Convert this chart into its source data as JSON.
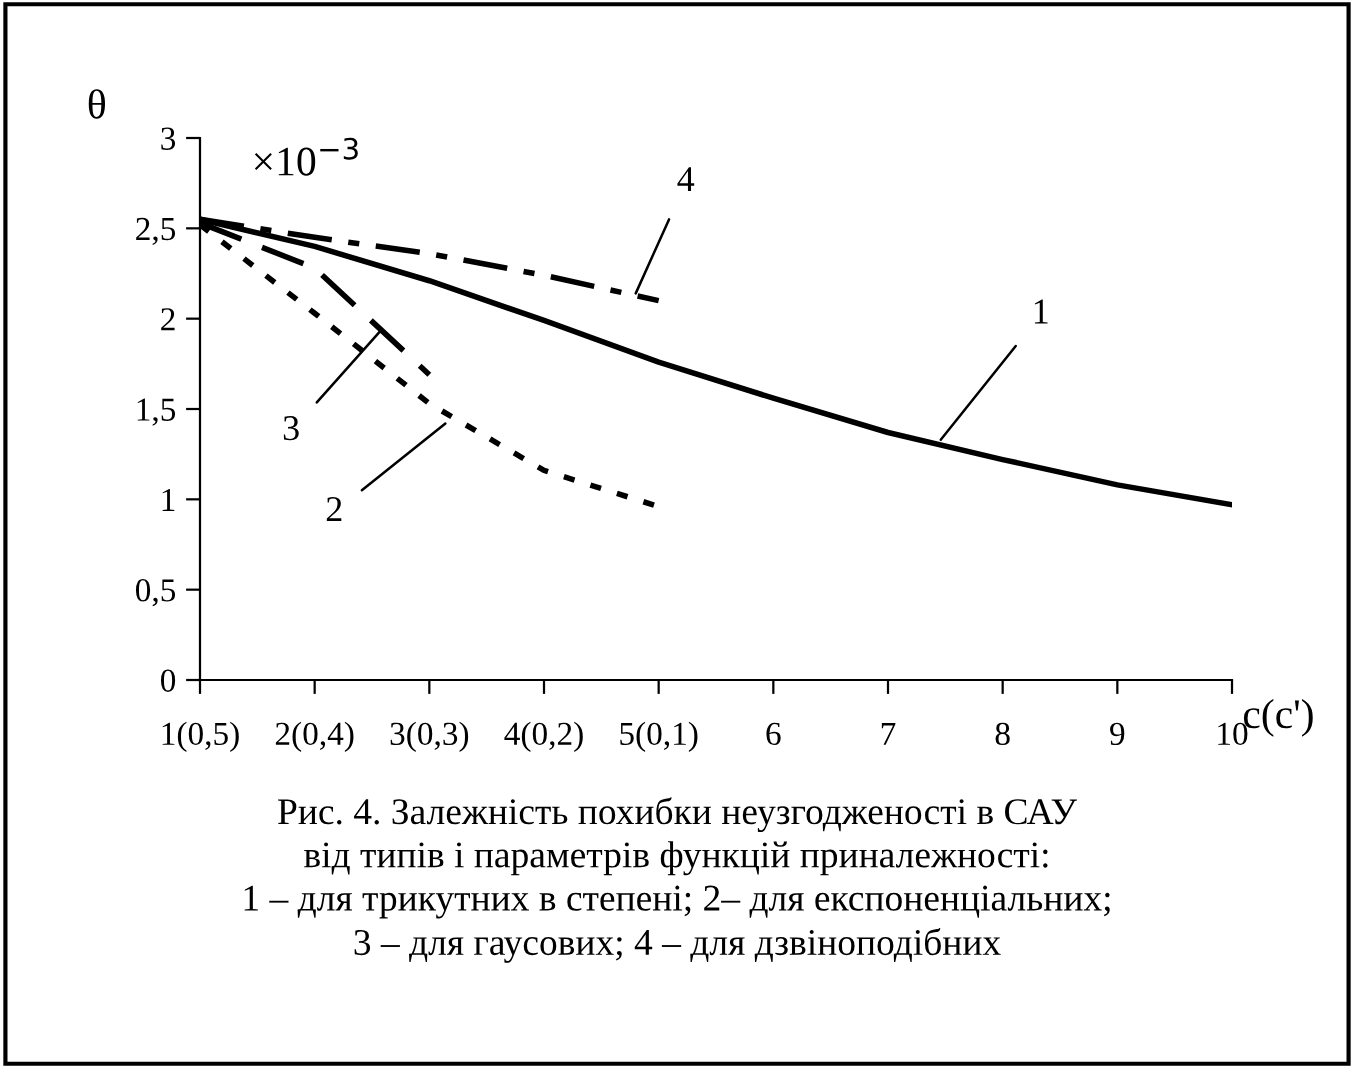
{
  "chart_data": {
    "type": "line",
    "ylabel": "θ",
    "xlabel": "c(c')",
    "x": [
      1,
      2,
      3,
      4,
      5,
      6,
      7,
      8,
      9,
      10
    ],
    "xlim": [
      1,
      10
    ],
    "xticks": [
      {
        "value": 1,
        "label": "1(0,5)"
      },
      {
        "value": 2,
        "label": "2(0,4)"
      },
      {
        "value": 3,
        "label": "3(0,3)"
      },
      {
        "value": 4,
        "label": "4(0,2)"
      },
      {
        "value": 5,
        "label": "5(0,1)"
      },
      6,
      7,
      8,
      9,
      10
    ],
    "ylim": [
      0,
      3
    ],
    "yticks": [
      0,
      {
        "value": 0.5,
        "label": "0,5"
      },
      1,
      {
        "value": 1.5,
        "label": "1,5"
      },
      2,
      {
        "value": 2.5,
        "label": "2,5"
      },
      3
    ],
    "grid": false,
    "legend": false,
    "series": [
      {
        "color": "#000000",
        "line_style": "solid",
        "values": [
          2.55,
          2.4,
          2.21,
          1.99,
          1.76,
          1.56,
          1.37,
          1.22,
          1.08,
          0.97
        ]
      },
      {
        "color": "#000000",
        "line_style": "dotted",
        "values": [
          2.52,
          2.03,
          1.53,
          1.16,
          0.96,
          null,
          null,
          null,
          null,
          null
        ]
      },
      {
        "color": "#000000",
        "line_style": "dashed",
        "values": [
          2.53,
          2.28,
          1.69,
          null,
          null,
          null,
          null,
          null,
          null,
          null
        ]
      },
      {
        "color": "#000000",
        "line_style": "dashdot",
        "values": [
          2.55,
          2.45,
          2.36,
          2.24,
          2.1,
          null,
          null,
          null,
          null,
          null
        ]
      }
    ],
    "annotations": [
      "×10$^{−3}$",
      {
        "text": "1",
        "x": 7.46,
        "y": 1.33
      },
      {
        "text": "2",
        "x": 3.14,
        "y": 1.42
      },
      {
        "text": "3",
        "x": 2.57,
        "y": 1.93
      },
      {
        "text": "4",
        "x": 4.8,
        "y": 2.14
      },
      "Рис. 4. Залежність похибки неузгодженості в САУ\nвід типів і параметрів функцій приналежності:\n1 – для трикутних в степені; 2– для експоненціальних;\n3 – для гаусових; 4 – для дзвіноподібних"
    ]
  }
}
